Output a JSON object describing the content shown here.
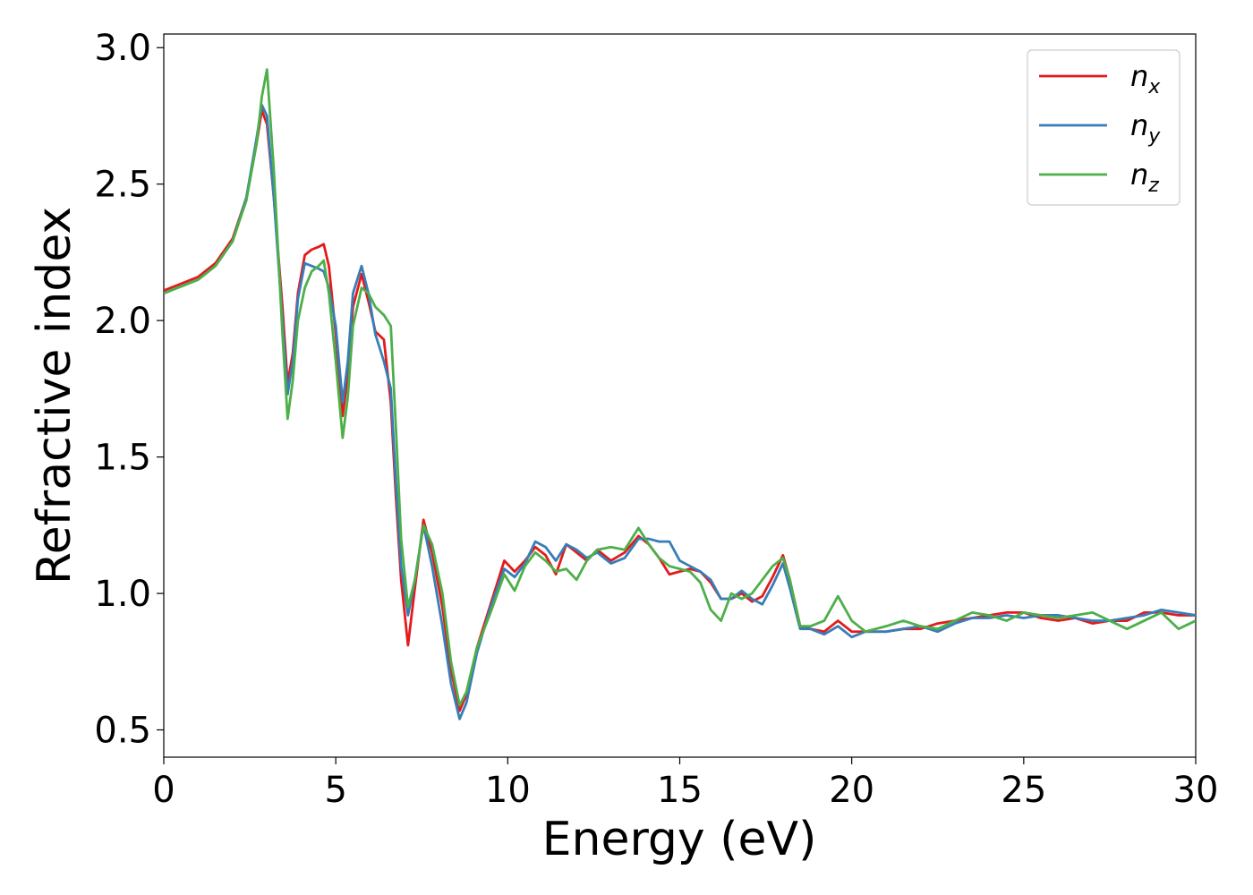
{
  "chart_data": {
    "type": "line",
    "title": "",
    "xlabel": "Energy (eV)",
    "ylabel": "Refractive index",
    "xlim": [
      0,
      30
    ],
    "ylim": [
      0.4,
      3.05
    ],
    "xticks": [
      0,
      5,
      10,
      15,
      20,
      25,
      30
    ],
    "xtick_labels": [
      "0",
      "5",
      "10",
      "15",
      "20",
      "25",
      "30"
    ],
    "yticks": [
      0.5,
      1.0,
      1.5,
      2.0,
      2.5,
      3.0
    ],
    "ytick_labels": [
      "0.5",
      "1.0",
      "1.5",
      "2.0",
      "2.5",
      "3.0"
    ],
    "grid": false,
    "legend_position": "top-right",
    "series": [
      {
        "name": "n",
        "subscript": "x",
        "color": "#e41a1c",
        "x": [
          0,
          1,
          1.5,
          2,
          2.4,
          2.7,
          2.85,
          3.0,
          3.2,
          3.45,
          3.6,
          3.75,
          3.9,
          4.1,
          4.3,
          4.5,
          4.65,
          4.8,
          5.0,
          5.2,
          5.35,
          5.5,
          5.75,
          5.95,
          6.15,
          6.4,
          6.6,
          6.75,
          6.9,
          7.1,
          7.3,
          7.55,
          7.8,
          8.1,
          8.35,
          8.6,
          8.8,
          9.1,
          9.5,
          9.9,
          10.2,
          10.5,
          10.8,
          11.1,
          11.4,
          11.7,
          12.0,
          12.3,
          12.6,
          13.0,
          13.4,
          13.8,
          14.1,
          14.4,
          14.7,
          15.0,
          15.3,
          15.6,
          15.9,
          16.2,
          16.5,
          16.8,
          17.1,
          17.4,
          17.7,
          18.0,
          18.2,
          18.5,
          18.8,
          19.2,
          19.6,
          20.0,
          20.4,
          21.0,
          21.5,
          22.0,
          22.5,
          23.0,
          23.5,
          24.0,
          24.5,
          25.0,
          25.5,
          26.0,
          26.5,
          27.0,
          27.5,
          28.0,
          28.5,
          29.0,
          29.5,
          30.0
        ],
        "y": [
          2.11,
          2.16,
          2.21,
          2.3,
          2.45,
          2.65,
          2.77,
          2.72,
          2.45,
          2.05,
          1.77,
          1.88,
          2.1,
          2.24,
          2.26,
          2.27,
          2.28,
          2.2,
          1.95,
          1.65,
          1.8,
          2.05,
          2.17,
          2.07,
          1.96,
          1.93,
          1.7,
          1.35,
          1.05,
          0.81,
          1.02,
          1.27,
          1.15,
          0.95,
          0.72,
          0.57,
          0.63,
          0.8,
          0.96,
          1.12,
          1.08,
          1.12,
          1.17,
          1.14,
          1.07,
          1.18,
          1.15,
          1.12,
          1.16,
          1.12,
          1.15,
          1.21,
          1.18,
          1.13,
          1.07,
          1.08,
          1.09,
          1.08,
          1.04,
          0.98,
          0.98,
          1.0,
          0.97,
          0.99,
          1.06,
          1.14,
          1.05,
          0.88,
          0.87,
          0.86,
          0.9,
          0.86,
          0.86,
          0.86,
          0.87,
          0.87,
          0.89,
          0.9,
          0.91,
          0.92,
          0.93,
          0.93,
          0.91,
          0.9,
          0.91,
          0.89,
          0.9,
          0.9,
          0.93,
          0.93,
          0.92,
          0.92
        ]
      },
      {
        "name": "n",
        "subscript": "y",
        "color": "#377eb8",
        "x": [
          0,
          1,
          1.5,
          2,
          2.4,
          2.7,
          2.85,
          3.0,
          3.2,
          3.45,
          3.6,
          3.75,
          3.9,
          4.1,
          4.3,
          4.5,
          4.65,
          4.8,
          5.0,
          5.2,
          5.35,
          5.5,
          5.75,
          5.95,
          6.15,
          6.4,
          6.6,
          6.75,
          6.9,
          7.1,
          7.3,
          7.55,
          7.8,
          8.1,
          8.35,
          8.6,
          8.8,
          9.1,
          9.5,
          9.9,
          10.2,
          10.5,
          10.8,
          11.1,
          11.4,
          11.7,
          12.0,
          12.3,
          12.6,
          13.0,
          13.4,
          13.8,
          14.1,
          14.4,
          14.7,
          15.0,
          15.3,
          15.6,
          15.9,
          16.2,
          16.5,
          16.8,
          17.1,
          17.4,
          17.7,
          18.0,
          18.2,
          18.5,
          18.8,
          19.2,
          19.6,
          20.0,
          20.4,
          21.0,
          21.5,
          22.0,
          22.5,
          23.0,
          23.5,
          24.0,
          24.5,
          25.0,
          25.5,
          26.0,
          26.5,
          27.0,
          27.5,
          28.0,
          28.5,
          29.0,
          29.5,
          30.0
        ],
        "y": [
          2.1,
          2.15,
          2.2,
          2.29,
          2.45,
          2.67,
          2.79,
          2.75,
          2.45,
          2.0,
          1.73,
          1.85,
          2.08,
          2.21,
          2.2,
          2.19,
          2.18,
          2.12,
          1.98,
          1.7,
          1.85,
          2.1,
          2.2,
          2.1,
          1.95,
          1.85,
          1.75,
          1.4,
          1.1,
          0.92,
          1.05,
          1.25,
          1.1,
          0.88,
          0.67,
          0.54,
          0.6,
          0.78,
          0.95,
          1.09,
          1.06,
          1.11,
          1.19,
          1.17,
          1.12,
          1.18,
          1.16,
          1.13,
          1.15,
          1.11,
          1.13,
          1.2,
          1.2,
          1.19,
          1.19,
          1.12,
          1.1,
          1.08,
          1.05,
          0.98,
          0.98,
          1.01,
          0.98,
          0.96,
          1.03,
          1.11,
          1.02,
          0.87,
          0.87,
          0.85,
          0.88,
          0.84,
          0.86,
          0.86,
          0.87,
          0.88,
          0.86,
          0.89,
          0.91,
          0.91,
          0.92,
          0.91,
          0.92,
          0.92,
          0.91,
          0.9,
          0.9,
          0.91,
          0.92,
          0.94,
          0.93,
          0.92
        ]
      },
      {
        "name": "n",
        "subscript": "z",
        "color": "#4daf4a",
        "x": [
          0,
          1,
          1.5,
          2,
          2.4,
          2.7,
          2.85,
          3.0,
          3.2,
          3.45,
          3.6,
          3.75,
          3.9,
          4.1,
          4.3,
          4.5,
          4.65,
          4.8,
          5.0,
          5.2,
          5.35,
          5.5,
          5.75,
          5.95,
          6.15,
          6.4,
          6.6,
          6.75,
          6.9,
          7.1,
          7.3,
          7.55,
          7.8,
          8.1,
          8.35,
          8.6,
          8.8,
          9.1,
          9.5,
          9.9,
          10.2,
          10.5,
          10.8,
          11.1,
          11.4,
          11.7,
          12.0,
          12.3,
          12.6,
          13.0,
          13.4,
          13.8,
          14.1,
          14.4,
          14.7,
          15.0,
          15.3,
          15.6,
          15.9,
          16.2,
          16.5,
          16.8,
          17.1,
          17.4,
          17.7,
          18.0,
          18.2,
          18.5,
          18.8,
          19.2,
          19.6,
          20.0,
          20.4,
          21.0,
          21.5,
          22.0,
          22.5,
          23.0,
          23.5,
          24.0,
          24.5,
          25.0,
          25.5,
          26.0,
          26.5,
          27.0,
          27.5,
          28.0,
          28.5,
          29.0,
          29.5,
          30.0
        ],
        "y": [
          2.1,
          2.15,
          2.2,
          2.29,
          2.44,
          2.65,
          2.82,
          2.92,
          2.55,
          1.95,
          1.64,
          1.78,
          2.0,
          2.12,
          2.18,
          2.2,
          2.22,
          2.1,
          1.85,
          1.57,
          1.72,
          1.98,
          2.12,
          2.1,
          2.05,
          2.02,
          1.98,
          1.6,
          1.2,
          0.95,
          1.05,
          1.25,
          1.18,
          1.0,
          0.75,
          0.59,
          0.64,
          0.8,
          0.93,
          1.07,
          1.01,
          1.1,
          1.15,
          1.12,
          1.08,
          1.09,
          1.05,
          1.12,
          1.16,
          1.17,
          1.16,
          1.24,
          1.18,
          1.13,
          1.1,
          1.09,
          1.08,
          1.04,
          0.94,
          0.9,
          1.0,
          0.98,
          1.0,
          1.05,
          1.1,
          1.13,
          1.05,
          0.88,
          0.88,
          0.9,
          0.99,
          0.9,
          0.86,
          0.88,
          0.9,
          0.88,
          0.87,
          0.9,
          0.93,
          0.92,
          0.9,
          0.93,
          0.92,
          0.91,
          0.92,
          0.93,
          0.9,
          0.87,
          0.9,
          0.93,
          0.87,
          0.9
        ]
      }
    ]
  }
}
